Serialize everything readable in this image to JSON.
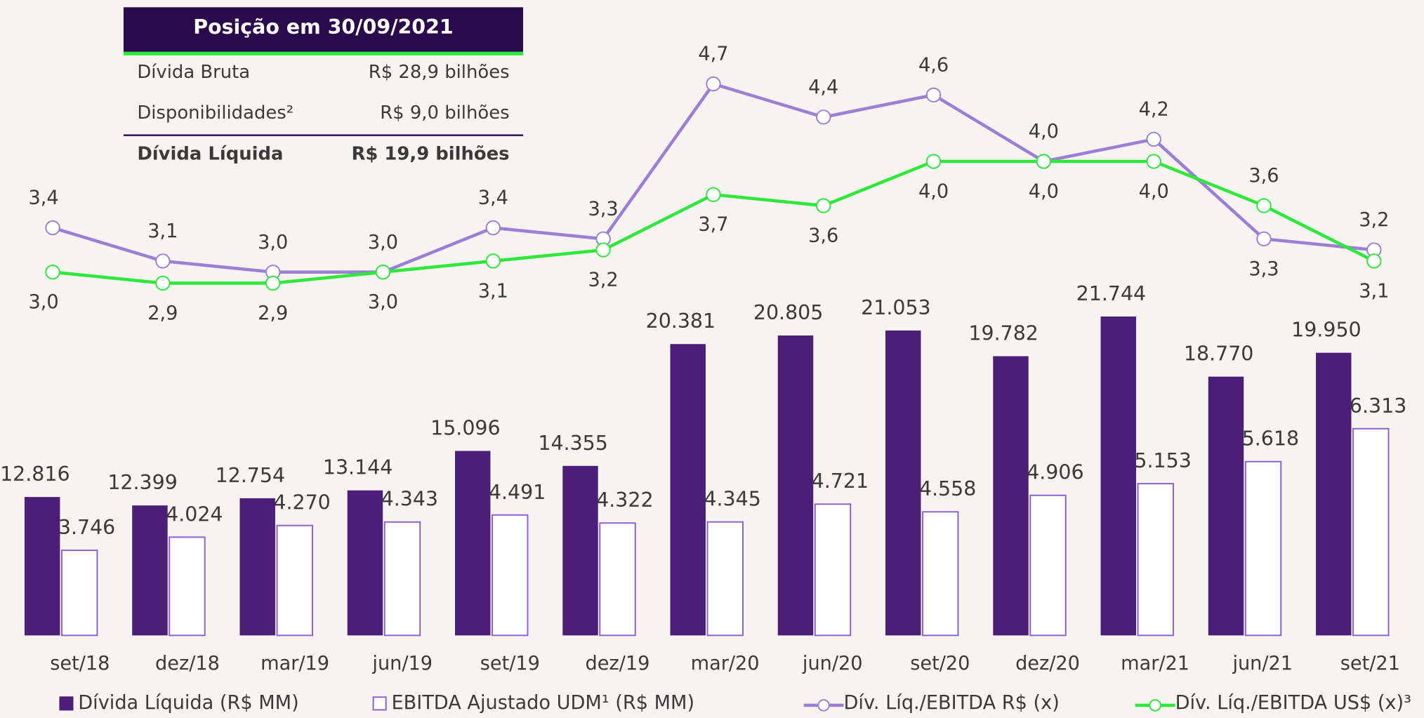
{
  "table": {
    "title": "Posição em 30/09/2021",
    "rows": [
      [
        "Dívida Bruta",
        "R$ 28,9 bilhões"
      ],
      [
        "Disponibilidades²",
        "R$ 9,0 bilhões"
      ],
      [
        "Dívida Líquida",
        "R$ 19,9 bilhões"
      ]
    ]
  },
  "chart_data": {
    "type": "bar",
    "categories": [
      "set/18",
      "dez/18",
      "mar/19",
      "jun/19",
      "set/19",
      "dez/19",
      "mar/20",
      "jun/20",
      "set/20",
      "dez/20",
      "mar/21",
      "jun/21",
      "set/21"
    ],
    "ylim": [
      5970,
      22000
    ],
    "y2lim": [
      1950,
      8790
    ],
    "y3lim": [
      2.67,
      5.13
    ],
    "series": [
      {
        "name": "Dívida Líquida (R$ MM)",
        "type": "bar",
        "axis": "y",
        "color": "#4b1e78",
        "values": [
          12816,
          12399,
          12754,
          13144,
          15096,
          14355,
          20381,
          20805,
          21053,
          19782,
          21744,
          18770,
          19950
        ],
        "value_labels": [
          "12.816",
          "12.399",
          "12.754",
          "13.144",
          "15.096",
          "14.355",
          "20.381",
          "20.805",
          "21.053",
          "19.782",
          "21.744",
          "18.770",
          "19.950"
        ]
      },
      {
        "name": "EBITDA Ajustado UDM¹ (R$ MM)",
        "type": "bar",
        "axis": "y2",
        "color": "#8a5fd0",
        "values": [
          3746,
          4024,
          4270,
          4343,
          4491,
          4322,
          4345,
          4721,
          4558,
          4906,
          5153,
          5618,
          6313
        ],
        "value_labels": [
          "3.746",
          "4.024",
          "4.270",
          "4.343",
          "4.491",
          "4.322",
          "4.345",
          "4.721",
          "4.558",
          "4.906",
          "5.153",
          "5.618",
          "6.313"
        ]
      },
      {
        "name": "Dív. Líq./EBITDA R$ (x)",
        "type": "line",
        "axis": "y3",
        "color": "#9b7fd4",
        "values": [
          3.4,
          3.1,
          3.0,
          3.0,
          3.4,
          3.3,
          4.7,
          4.4,
          4.6,
          4.0,
          4.2,
          3.3,
          3.2
        ],
        "value_labels": [
          "3,4",
          "3,1",
          "3,0",
          "3,0",
          "3,4",
          "3,3",
          "4,7",
          "4,4",
          "4,6",
          "4,0",
          "4,2",
          "3,3",
          "3,2"
        ]
      },
      {
        "name": "Dív. Líq./EBITDA US$ (x)³",
        "type": "line",
        "axis": "y3",
        "color": "#2ee83a",
        "values": [
          3.0,
          2.9,
          2.9,
          3.0,
          3.1,
          3.2,
          3.7,
          3.6,
          4.0,
          4.0,
          4.0,
          3.6,
          3.1
        ],
        "value_labels": [
          "3,0",
          "2,9",
          "2,9",
          "3,0",
          "3,1",
          "3,2",
          "3,7",
          "3,6",
          "4,0",
          "4,0",
          "4,0",
          "3,6",
          "3,1"
        ]
      }
    ]
  }
}
